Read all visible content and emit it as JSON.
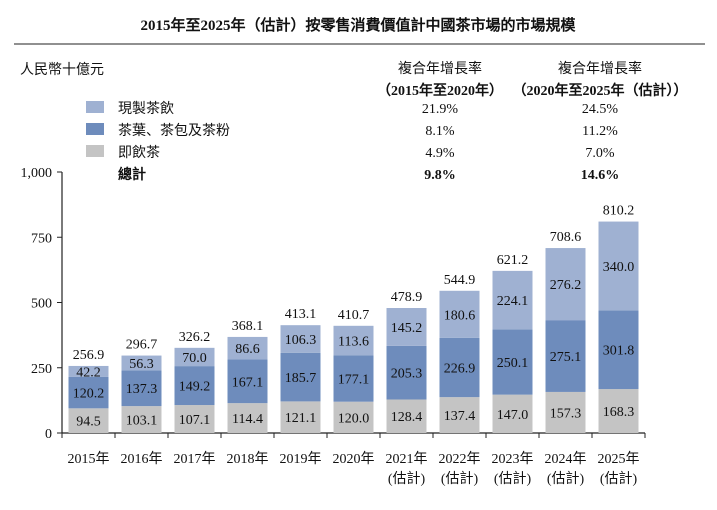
{
  "chart_data": {
    "type": "bar",
    "stacked": true,
    "title": "2015年至2025年（估計）按零售消費價值計中國茶市場的市場規模",
    "ylabel": "人民幣十億元",
    "ylim": [
      0,
      1000
    ],
    "yticks": [
      "0",
      "250",
      "500",
      "750",
      "1,000"
    ],
    "ytick_values": [
      0,
      250,
      500,
      750,
      1000
    ],
    "grid": false,
    "categories": [
      "2015年",
      "2016年",
      "2017年",
      "2018年",
      "2019年",
      "2020年",
      "2021年",
      "2022年",
      "2023年",
      "2024年",
      "2025年"
    ],
    "category_sub": [
      "",
      "",
      "",
      "",
      "",
      "",
      "(估計)",
      "(估計)",
      "(估計)",
      "(估計)",
      "(估計)"
    ],
    "series": [
      {
        "name": "即飲茶",
        "color": "#c4c4c4",
        "values": [
          94.5,
          103.1,
          107.1,
          114.4,
          121.1,
          120.0,
          128.4,
          137.4,
          147.0,
          157.3,
          168.3
        ]
      },
      {
        "name": "茶葉、茶包及茶粉",
        "color": "#6e8cbc",
        "values": [
          120.2,
          137.3,
          149.2,
          167.1,
          185.7,
          177.1,
          205.3,
          226.9,
          250.1,
          275.1,
          301.8
        ]
      },
      {
        "name": "現製茶飲",
        "color": "#9fb1d2",
        "values": [
          42.2,
          56.3,
          70.0,
          86.6,
          106.3,
          113.6,
          145.2,
          180.6,
          224.1,
          276.2,
          340.0
        ]
      }
    ],
    "totals": [
      "256.9",
      "296.7",
      "326.2",
      "368.1",
      "413.1",
      "410.7",
      "478.9",
      "544.9",
      "621.2",
      "708.6",
      "810.2"
    ],
    "value_labels": [
      [
        "94.5",
        "103.1",
        "107.1",
        "114.4",
        "121.1",
        "120.0",
        "128.4",
        "137.4",
        "147.0",
        "157.3",
        "168.3"
      ],
      [
        "120.2",
        "137.3",
        "149.2",
        "167.1",
        "185.7",
        "177.1",
        "205.3",
        "226.9",
        "250.1",
        "275.1",
        "301.8"
      ],
      [
        "42.2",
        "56.3",
        "70.0",
        "86.6",
        "106.3",
        "113.6",
        "145.2",
        "180.6",
        "224.1",
        "276.2",
        "340.0"
      ]
    ],
    "cagr_table": {
      "header1": [
        "複合年增長率",
        "（2015年至2020年）"
      ],
      "header2": [
        "複合年增長率",
        "（2020年至2025年（估計））"
      ],
      "rows": [
        {
          "label": "現製茶飲",
          "color": "#9fb1d2",
          "c1": "21.9%",
          "c2": "24.5%"
        },
        {
          "label": "茶葉、茶包及茶粉",
          "color": "#6e8cbc",
          "c1": "8.1%",
          "c2": "11.2%"
        },
        {
          "label": "即飲茶",
          "color": "#c4c4c4",
          "c1": "4.9%",
          "c2": "7.0%"
        },
        {
          "label": "總計",
          "color": "",
          "c1": "9.8%",
          "c2": "14.6%",
          "bold": true
        }
      ]
    }
  }
}
